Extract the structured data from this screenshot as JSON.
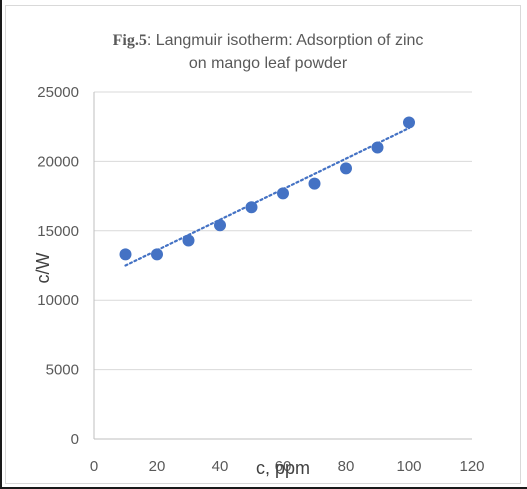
{
  "chart_data": {
    "type": "scatter",
    "title_prefix": "Fig.5",
    "title_line1_rest": ": Langmuir isotherm: Adsorption of zinc",
    "title_line2": "on mango leaf powder",
    "xlabel": "c, ppm",
    "ylabel": "c/W",
    "xlim": [
      0,
      120
    ],
    "ylim": [
      0,
      25000
    ],
    "x_ticks": [
      0,
      20,
      40,
      60,
      80,
      100,
      120
    ],
    "y_ticks": [
      0,
      5000,
      10000,
      15000,
      20000,
      25000
    ],
    "grid": "horizontal",
    "legend": "none",
    "series": [
      {
        "x": [
          10,
          20,
          30,
          40,
          50,
          60,
          70,
          80,
          90,
          100
        ],
        "y": [
          13300,
          13300,
          14300,
          15400,
          16700,
          17700,
          18400,
          19500,
          21000,
          22800
        ]
      }
    ],
    "trendline": {
      "type": "linear",
      "style": "dotted",
      "x": [
        10,
        100
      ],
      "y": [
        12500,
        22400
      ]
    },
    "colors": {
      "marker": "#4472c4",
      "trendline": "#4472c4",
      "grid": "#d9d9d9",
      "text": "#595959"
    }
  }
}
